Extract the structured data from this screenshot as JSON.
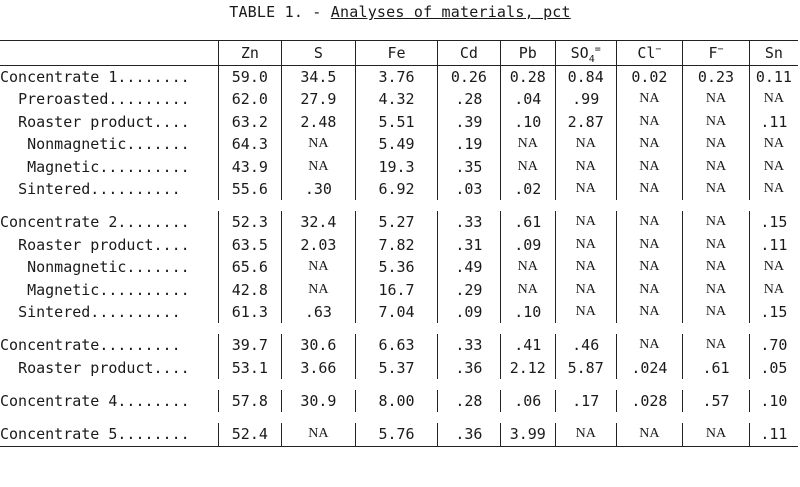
{
  "title": {
    "prefix": "TABLE 1. - ",
    "main": "Analyses of materials, pct"
  },
  "table": {
    "headers": [
      "Zn",
      "S",
      "Fe",
      "Cd",
      "Pb",
      "SO4=",
      "Cl−",
      "F−",
      "Sn"
    ],
    "rows": [
      {
        "label": "Concentrate 1........",
        "indent": 0,
        "values": [
          "59.0",
          "34.5",
          "3.76",
          "0.26",
          "0.28",
          "0.84",
          "0.02",
          "0.23",
          "0.11"
        ]
      },
      {
        "label": "Preroasted.........",
        "indent": 1,
        "values": [
          "62.0",
          "27.9",
          "4.32",
          ".28",
          ".04",
          ".99",
          "NA",
          "NA",
          "NA"
        ]
      },
      {
        "label": "Roaster product....",
        "indent": 1,
        "values": [
          "63.2",
          "2.48",
          "5.51",
          ".39",
          ".10",
          "2.87",
          "NA",
          "NA",
          ".11"
        ]
      },
      {
        "label": "Nonmagnetic.......",
        "indent": 2,
        "values": [
          "64.3",
          "NA",
          "5.49",
          ".19",
          "NA",
          "NA",
          "NA",
          "NA",
          "NA"
        ]
      },
      {
        "label": "Magnetic..........",
        "indent": 2,
        "values": [
          "43.9",
          "NA",
          "19.3",
          ".35",
          "NA",
          "NA",
          "NA",
          "NA",
          "NA"
        ]
      },
      {
        "label": "Sintered..........",
        "indent": 1,
        "values": [
          "55.6",
          ".30",
          "6.92",
          ".03",
          ".02",
          "NA",
          "NA",
          "NA",
          "NA"
        ]
      },
      {
        "gap": true
      },
      {
        "label": "Concentrate 2........",
        "indent": 0,
        "values": [
          "52.3",
          "32.4",
          "5.27",
          ".33",
          ".61",
          "NA",
          "NA",
          "NA",
          ".15"
        ]
      },
      {
        "label": "Roaster product....",
        "indent": 1,
        "values": [
          "63.5",
          "2.03",
          "7.82",
          ".31",
          ".09",
          "NA",
          "NA",
          "NA",
          ".11"
        ]
      },
      {
        "label": "Nonmagnetic.......",
        "indent": 2,
        "values": [
          "65.6",
          "NA",
          "5.36",
          ".49",
          "NA",
          "NA",
          "NA",
          "NA",
          "NA"
        ]
      },
      {
        "label": "Magnetic..........",
        "indent": 2,
        "values": [
          "42.8",
          "NA",
          "16.7",
          ".29",
          "NA",
          "NA",
          "NA",
          "NA",
          "NA"
        ]
      },
      {
        "label": "Sintered..........",
        "indent": 1,
        "values": [
          "61.3",
          ".63",
          "7.04",
          ".09",
          ".10",
          "NA",
          "NA",
          "NA",
          ".15"
        ]
      },
      {
        "gap": true
      },
      {
        "label": "Concentrate.........",
        "indent": 0,
        "values": [
          "39.7",
          "30.6",
          "6.63",
          ".33",
          ".41",
          ".46",
          "NA",
          "NA",
          ".70"
        ]
      },
      {
        "label": "Roaster product....",
        "indent": 1,
        "values": [
          "53.1",
          "3.66",
          "5.37",
          ".36",
          "2.12",
          "5.87",
          ".024",
          ".61",
          ".05"
        ]
      },
      {
        "gap": true
      },
      {
        "label": "Concentrate 4........",
        "indent": 0,
        "values": [
          "57.8",
          "30.9",
          "8.00",
          ".28",
          ".06",
          ".17",
          ".028",
          ".57",
          ".10"
        ]
      },
      {
        "gap": true
      },
      {
        "label": "Concentrate 5........",
        "indent": 0,
        "values": [
          "52.4",
          "NA",
          "5.76",
          ".36",
          "3.99",
          "NA",
          "NA",
          "NA",
          ".11"
        ]
      }
    ]
  }
}
